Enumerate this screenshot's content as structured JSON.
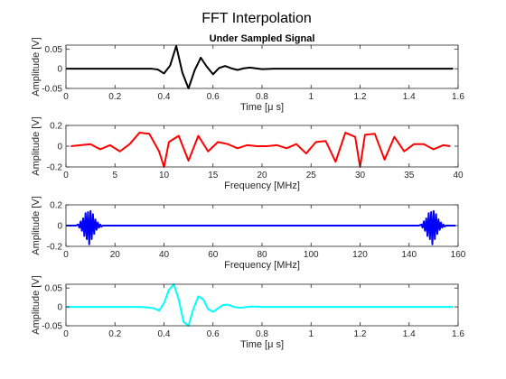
{
  "figure": {
    "title": "FFT Interpolation"
  },
  "colors": {
    "black": "#000000",
    "red": "#ff0000",
    "blue": "#0000ff",
    "cyan": "#00ffff",
    "axis": "#262626"
  },
  "chart_data": [
    {
      "type": "line",
      "title": "Under Sampled Signal",
      "xlabel": "Time [μ s]",
      "ylabel": "Amplitude [V]",
      "xlim": [
        0,
        1.6
      ],
      "ylim": [
        -0.05,
        0.06
      ],
      "xticks": [
        0,
        0.2,
        0.4,
        0.6,
        0.8,
        1,
        1.2,
        1.4,
        1.6
      ],
      "xtick_labels": [
        "0",
        "0.2",
        "0.4",
        "0.6",
        "0.8",
        "1",
        "1.2",
        "1.4",
        "1.6"
      ],
      "yticks": [
        -0.05,
        0,
        0.05
      ],
      "ytick_labels": [
        "-0.05",
        "0",
        "0.05"
      ],
      "series": [
        {
          "color": "#000000",
          "x": [
            0,
            0.1,
            0.2,
            0.3,
            0.35,
            0.375,
            0.4,
            0.425,
            0.45,
            0.475,
            0.5,
            0.525,
            0.55,
            0.575,
            0.6,
            0.625,
            0.65,
            0.675,
            0.7,
            0.725,
            0.75,
            0.775,
            0.8,
            0.85,
            0.9,
            1.0,
            1.2,
            1.4,
            1.58
          ],
          "y": [
            0,
            0,
            0,
            0,
            0,
            -0.002,
            -0.012,
            0.008,
            0.058,
            -0.01,
            -0.05,
            -0.004,
            0.028,
            0.005,
            -0.014,
            0.002,
            0.007,
            0.001,
            -0.003,
            0.001,
            0.003,
            0.001,
            -0.001,
            0,
            0,
            0,
            0,
            0,
            0
          ]
        }
      ]
    },
    {
      "type": "line",
      "title": "",
      "xlabel": "Frequency [MHz]",
      "ylabel": "Amplitude [V]",
      "xlim": [
        0,
        40
      ],
      "ylim": [
        -0.2,
        0.2
      ],
      "xticks": [
        0,
        5,
        10,
        15,
        20,
        25,
        30,
        35,
        40
      ],
      "xtick_labels": [
        "0",
        "5",
        "10",
        "15",
        "20",
        "25",
        "30",
        "35",
        "40"
      ],
      "yticks": [
        -0.2,
        0,
        0.2
      ],
      "ytick_labels": [
        "-0.2",
        "0",
        "0.2"
      ],
      "series": [
        {
          "color": "#ff0000",
          "x": [
            0.5,
            1.5,
            2.5,
            3.5,
            4.5,
            5.5,
            6.5,
            7.5,
            8.5,
            9.5,
            10,
            10.5,
            11.5,
            12.5,
            13.5,
            14.5,
            15.5,
            16.5,
            17.5,
            18.5,
            19.5,
            20.5,
            21.5,
            22.5,
            23.5,
            24.5,
            25.5,
            26.5,
            27.5,
            28.5,
            29.5,
            30,
            30.5,
            31.5,
            32.5,
            33.5,
            34.5,
            35.5,
            36.5,
            37.5,
            38.5,
            39.2
          ],
          "y": [
            0.0,
            0.01,
            0.02,
            -0.03,
            0.01,
            -0.05,
            0.02,
            0.13,
            0.12,
            -0.05,
            -0.2,
            0.04,
            0.1,
            -0.14,
            0.1,
            -0.05,
            0.04,
            0.02,
            -0.02,
            0.01,
            0.0,
            0.0,
            0.01,
            -0.02,
            0.02,
            -0.07,
            0.04,
            0.05,
            -0.15,
            0.13,
            0.09,
            -0.2,
            0.11,
            0.12,
            -0.13,
            0.09,
            -0.05,
            0.02,
            0.02,
            -0.03,
            0.01,
            0.0
          ]
        }
      ]
    },
    {
      "type": "line",
      "title": "",
      "xlabel": "Frequency [MHz]",
      "ylabel": "Amplitude [V]",
      "xlim": [
        0,
        160
      ],
      "ylim": [
        -0.2,
        0.2
      ],
      "xticks": [
        0,
        20,
        40,
        60,
        80,
        100,
        120,
        140,
        160
      ],
      "xtick_labels": [
        "0",
        "20",
        "40",
        "60",
        "80",
        "100",
        "120",
        "140",
        "160"
      ],
      "yticks": [
        -0.2,
        0,
        0.2
      ],
      "ytick_labels": [
        "-0.2",
        "0",
        "0.2"
      ],
      "series": [
        {
          "color": "#0000ff",
          "x": [
            0,
            4,
            5,
            5.5,
            6,
            6.5,
            7,
            7.5,
            8,
            8.5,
            9,
            9.5,
            10,
            10.5,
            11,
            11.5,
            12,
            12.5,
            13,
            13.5,
            14,
            14.5,
            15,
            16,
            20,
            60,
            100,
            140,
            144,
            145,
            145.5,
            146,
            146.5,
            147,
            147.5,
            148,
            148.5,
            149,
            149.5,
            150,
            150.5,
            151,
            151.5,
            152,
            152.5,
            153,
            153.5,
            154,
            154.5,
            155,
            156,
            159
          ],
          "y": [
            0,
            0,
            0.01,
            -0.02,
            0.04,
            -0.05,
            0.07,
            -0.1,
            0.12,
            -0.13,
            0.13,
            -0.18,
            0.14,
            -0.13,
            0.11,
            -0.08,
            0.06,
            -0.04,
            0.03,
            -0.02,
            0.01,
            -0.01,
            0,
            0,
            0,
            0,
            0,
            0,
            0,
            0.01,
            -0.02,
            0.04,
            -0.05,
            0.07,
            -0.1,
            0.12,
            -0.13,
            0.13,
            -0.18,
            0.14,
            -0.13,
            0.11,
            -0.08,
            0.06,
            -0.04,
            0.03,
            -0.02,
            0.01,
            -0.01,
            0,
            0,
            0
          ]
        }
      ]
    },
    {
      "type": "line",
      "title": "",
      "xlabel": "Time [μ s]",
      "ylabel": "Amplitude [V]",
      "xlim": [
        0,
        1.6
      ],
      "ylim": [
        -0.05,
        0.06
      ],
      "xticks": [
        0,
        0.2,
        0.4,
        0.6,
        0.8,
        1,
        1.2,
        1.4,
        1.6
      ],
      "xtick_labels": [
        "0",
        "0.2",
        "0.4",
        "0.6",
        "0.8",
        "1",
        "1.2",
        "1.4",
        "1.6"
      ],
      "yticks": [
        -0.05,
        0,
        0.05
      ],
      "ytick_labels": [
        "-0.05",
        "0",
        "0.05"
      ],
      "series": [
        {
          "color": "#00ffff",
          "x": [
            0,
            0.3,
            0.34,
            0.36,
            0.38,
            0.4,
            0.42,
            0.44,
            0.46,
            0.48,
            0.5,
            0.52,
            0.54,
            0.56,
            0.58,
            0.6,
            0.62,
            0.64,
            0.66,
            0.68,
            0.7,
            0.72,
            0.74,
            0.76,
            0.8,
            1.0,
            1.2,
            1.4,
            1.58
          ],
          "y": [
            0,
            0,
            -0.002,
            -0.004,
            -0.01,
            0.01,
            0.045,
            0.06,
            0.02,
            -0.04,
            -0.05,
            -0.005,
            0.028,
            0.02,
            -0.006,
            -0.013,
            -0.004,
            0.005,
            0.006,
            0.001,
            -0.002,
            -0.002,
            0.0,
            0.001,
            0,
            0,
            0,
            0,
            0
          ]
        }
      ]
    }
  ]
}
